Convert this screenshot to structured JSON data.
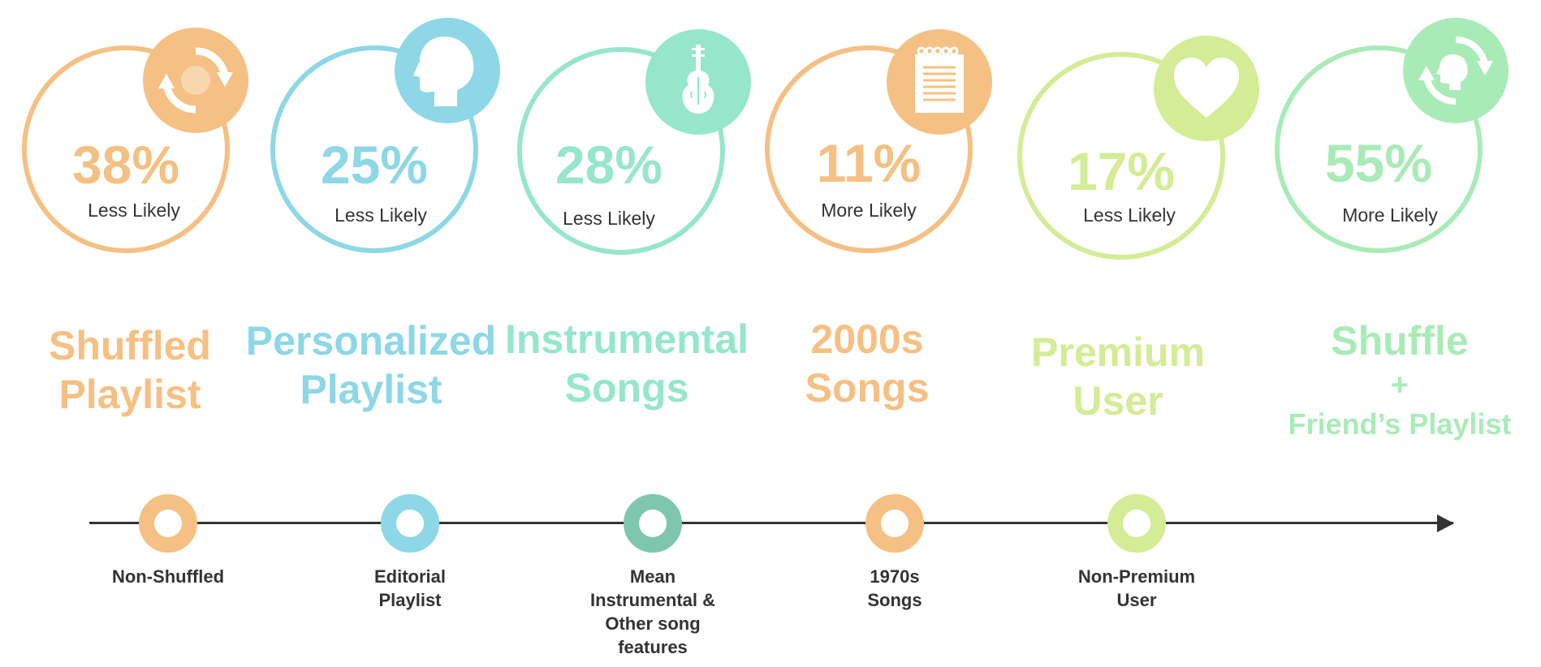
{
  "colors": {
    "orange": "#F5C083",
    "blue": "#8DD7E6",
    "teal": "#96E6CB",
    "teal_dark": "#7FC6AE",
    "lime": "#D3EC95",
    "green": "#A9EBB7",
    "axis": "#333333"
  },
  "cards": [
    {
      "pct": "38%",
      "sub": "Less Likely",
      "title": [
        "Shuffled",
        "Playlist"
      ],
      "icon": "shuffle-icon"
    },
    {
      "pct": "25%",
      "sub": "Less Likely",
      "title": [
        "Personalized",
        "Playlist"
      ],
      "icon": "head-profile-icon"
    },
    {
      "pct": "28%",
      "sub": "Less Likely",
      "title": [
        "Instrumental",
        "Songs"
      ],
      "icon": "violin-icon"
    },
    {
      "pct": "11%",
      "sub": "More Likely",
      "title": [
        "2000s",
        "Songs"
      ],
      "icon": "notepad-icon"
    },
    {
      "pct": "17%",
      "sub": "Less Likely",
      "title": [
        "Premium",
        "User"
      ],
      "icon": "heart-icon"
    },
    {
      "pct": "55%",
      "sub": "More Likely",
      "title": [
        "Shuffle",
        "+",
        "Friend’s Playlist"
      ],
      "icon": "shuffle-person-icon"
    }
  ],
  "baselines": [
    {
      "label": [
        "Non-Shuffled"
      ]
    },
    {
      "label": [
        "Editorial",
        "Playlist"
      ]
    },
    {
      "label": [
        "Mean",
        "Instrumental &",
        "Other song",
        "features"
      ]
    },
    {
      "label": [
        "1970s",
        "Songs"
      ]
    },
    {
      "label": [
        "Non-Premium",
        "User"
      ]
    }
  ]
}
